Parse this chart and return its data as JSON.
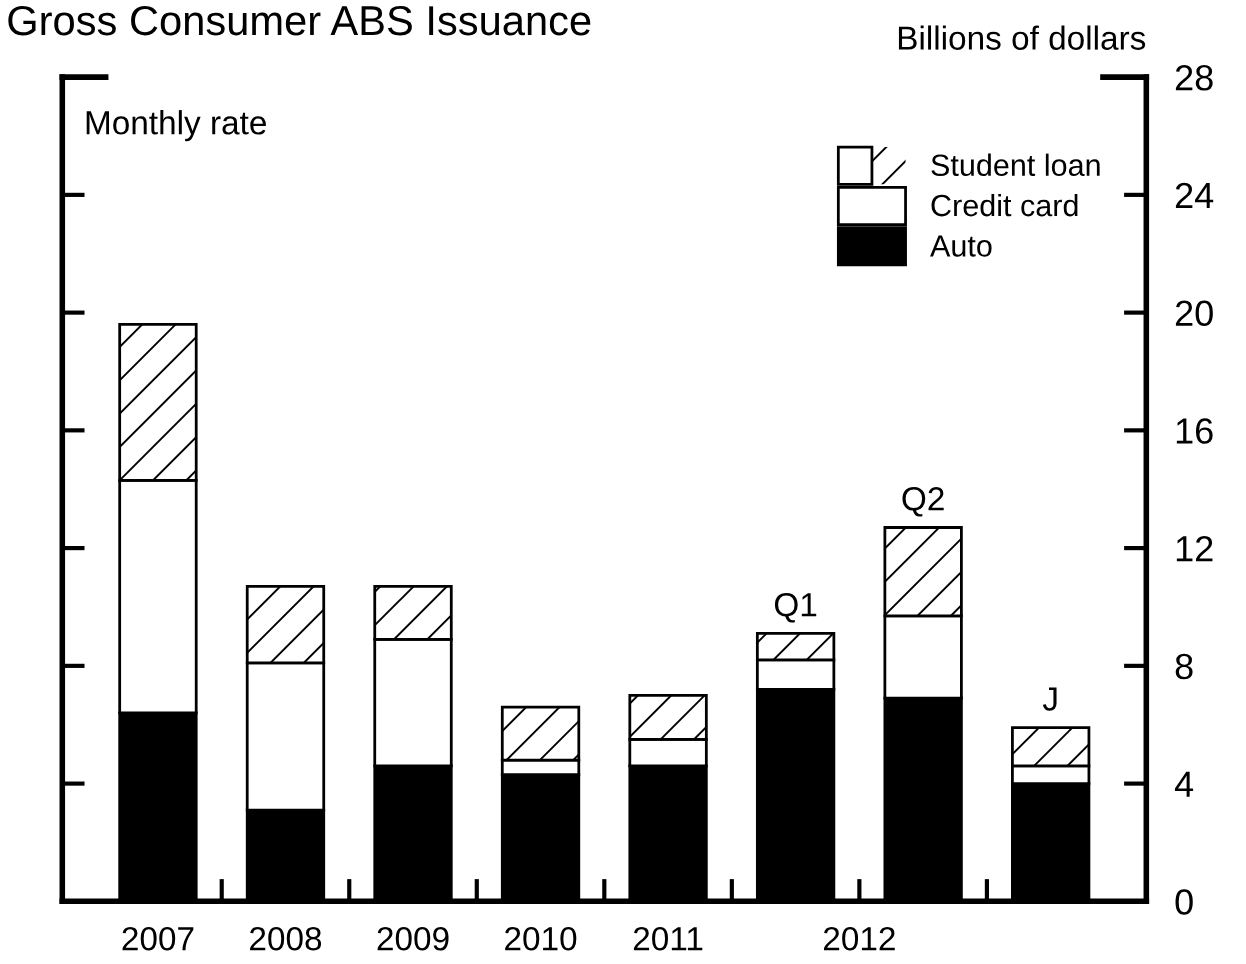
{
  "chart_data": {
    "type": "bar",
    "title": "Gross Consumer ABS Issuance",
    "ylabel": "Billions of dollars",
    "annotations": [
      "Monthly rate",
      "2012"
    ],
    "categories": [
      "2007",
      "2008",
      "2009",
      "2010",
      "2011",
      "Q1",
      "Q2",
      "J"
    ],
    "stacked": true,
    "series": [
      {
        "name": "Auto",
        "color": "#000000",
        "values": [
          6.4,
          3.1,
          4.6,
          4.3,
          4.6,
          7.2,
          6.9,
          4.0
        ]
      },
      {
        "name": "Credit card",
        "color": "#ffffff",
        "values": [
          7.9,
          5.0,
          4.3,
          0.5,
          0.9,
          1.0,
          2.8,
          0.6
        ]
      },
      {
        "name": "Student loan",
        "color": "#ffffff",
        "values": [
          5.3,
          2.6,
          1.8,
          1.8,
          1.5,
          0.9,
          3.0,
          1.3
        ]
      }
    ],
    "ylim": [
      0,
      28
    ],
    "yticks": [
      0,
      4,
      8,
      12,
      16,
      20,
      24,
      28
    ],
    "tick_labels": "y",
    "grid": false,
    "legend": "top right"
  }
}
